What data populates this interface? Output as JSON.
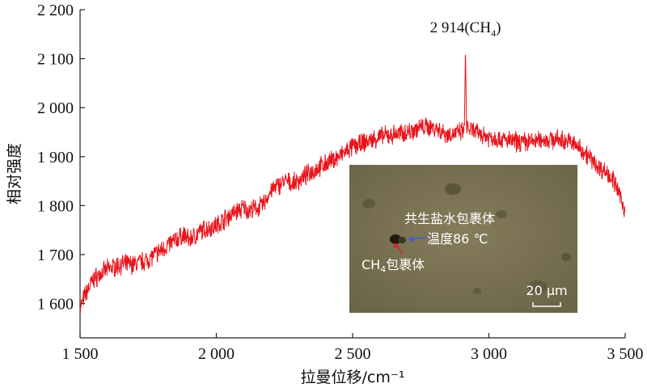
{
  "chart_data": {
    "type": "line",
    "xlabel": "拉曼位移/cm⁻¹",
    "ylabel": "相对强度",
    "xlim": [
      1500,
      3500
    ],
    "ylim": [
      1530,
      2200
    ],
    "x_ticks": [
      1500,
      2000,
      2500,
      3000,
      3500
    ],
    "x_tick_labels": [
      "1 500",
      "2 000",
      "2 500",
      "3 000",
      "3 500"
    ],
    "y_ticks": [
      1600,
      1700,
      1800,
      1900,
      2000,
      2100,
      2200
    ],
    "y_tick_labels": [
      "1 600",
      "1 700",
      "1 800",
      "1 900",
      "2 000",
      "2 100",
      "2 200"
    ],
    "grid": false,
    "line_color": "#e8141c",
    "series": [
      {
        "x": [
          1500,
          1520,
          1550,
          1600,
          1650,
          1700,
          1750,
          1800,
          1850,
          1880,
          1900,
          1950,
          2000,
          2050,
          2080,
          2100,
          2120,
          2150,
          2170,
          2200,
          2250,
          2280,
          2300,
          2350,
          2400,
          2450,
          2500,
          2550,
          2600,
          2650,
          2700,
          2750,
          2800,
          2850,
          2900,
          2910,
          2914,
          2918,
          2930,
          2950,
          3000,
          3050,
          3100,
          3150,
          3200,
          3250,
          3300,
          3350,
          3400,
          3450,
          3480,
          3500
        ],
        "y": [
          1590,
          1620,
          1650,
          1670,
          1680,
          1680,
          1690,
          1710,
          1730,
          1740,
          1730,
          1750,
          1760,
          1780,
          1790,
          1795,
          1790,
          1795,
          1800,
          1830,
          1850,
          1845,
          1850,
          1870,
          1885,
          1900,
          1920,
          1930,
          1940,
          1945,
          1950,
          1960,
          1960,
          1945,
          1950,
          1955,
          2125,
          1960,
          1955,
          1950,
          1940,
          1935,
          1930,
          1930,
          1935,
          1935,
          1930,
          1910,
          1880,
          1860,
          1820,
          1790
        ]
      }
    ],
    "annotation": {
      "text": "2 914(CH",
      "subscript": "4",
      "suffix": ")",
      "x": 2914,
      "y": 2125
    }
  },
  "inset": {
    "label_brine": "共生盐水包裹体",
    "label_temp": "温度86 ℃",
    "label_ch4": "CH",
    "label_ch4_sub": "4",
    "label_ch4_suffix": "包裹体",
    "scalebar": "20 μm",
    "colors": {
      "background": "#77704f",
      "arrow_red": "#d9202a",
      "arrow_blue": "#3a62c8"
    }
  }
}
